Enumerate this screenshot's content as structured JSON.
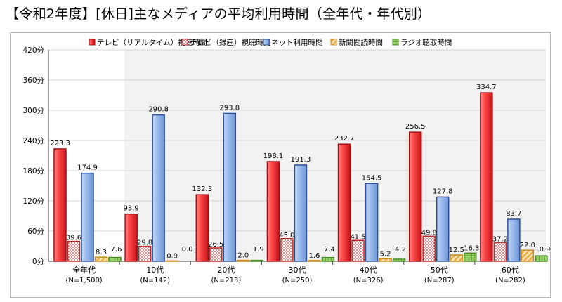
{
  "title": "【令和2年度】[休日]主なメディアの平均利用時間（全年代・年代別）",
  "chart_data": {
    "type": "bar",
    "title": "【令和2年度】[休日]主なメディアの平均利用時間（全年代・年代別）",
    "categories": [
      "全年代",
      "10代",
      "20代",
      "30代",
      "40代",
      "50代",
      "60代"
    ],
    "category_sublabels": [
      "(N=1,500)",
      "(N=142)",
      "(N=213)",
      "(N=250)",
      "(N=326)",
      "(N=287)",
      "(N=282)"
    ],
    "series": [
      {
        "name": "テレビ（リアルタイム）視聴時間",
        "values": [
          223.3,
          93.9,
          132.3,
          198.1,
          232.7,
          256.5,
          334.7
        ],
        "labels": [
          "223.3",
          "93.9",
          "132.3",
          "198.1",
          "232.7",
          "256.5",
          "334.7"
        ],
        "color": "#e0282c",
        "pattern": "solid"
      },
      {
        "name": "テレビ（録画）視聴時間",
        "values": [
          39.6,
          29.8,
          26.5,
          45.0,
          41.5,
          49.8,
          37.2
        ],
        "labels": [
          "39.6",
          "29.8",
          "26.5",
          "45.0",
          "41.5",
          "49.8",
          "37.2"
        ],
        "color": "#d83a3a",
        "pattern": "dots"
      },
      {
        "name": "ネット利用時間",
        "values": [
          174.9,
          290.8,
          293.8,
          191.3,
          154.5,
          127.8,
          83.7
        ],
        "labels": [
          "174.9",
          "290.8",
          "293.8",
          "191.3",
          "154.5",
          "127.8",
          "83.7"
        ],
        "color": "#8fb3e8",
        "pattern": "solid"
      },
      {
        "name": "新聞閲読時間",
        "values": [
          8.3,
          0.9,
          2.0,
          1.6,
          5.2,
          12.5,
          22.0
        ],
        "labels": [
          "8.3",
          "0.9",
          "2.0",
          "1.6",
          "5.2",
          "12.5",
          "22.0"
        ],
        "color": "#f2c36b",
        "pattern": "hatch"
      },
      {
        "name": "ラジオ聴取時間",
        "values": [
          7.6,
          0.0,
          1.9,
          7.4,
          4.2,
          16.3,
          10.9
        ],
        "labels": [
          "7.6",
          "0.0",
          "1.9",
          "7.4",
          "4.2",
          "16.3",
          "10.9"
        ],
        "color": "#7ec24a",
        "pattern": "grid"
      }
    ],
    "ylim": [
      0,
      420
    ],
    "yticks": [
      0,
      60,
      120,
      180,
      240,
      300,
      360,
      420
    ],
    "ytick_labels": [
      "0分",
      "60分",
      "120分",
      "180分",
      "240分",
      "300分",
      "360分",
      "420分"
    ],
    "xlabel": "",
    "ylabel": "",
    "grid": true,
    "legend_position": "top"
  }
}
